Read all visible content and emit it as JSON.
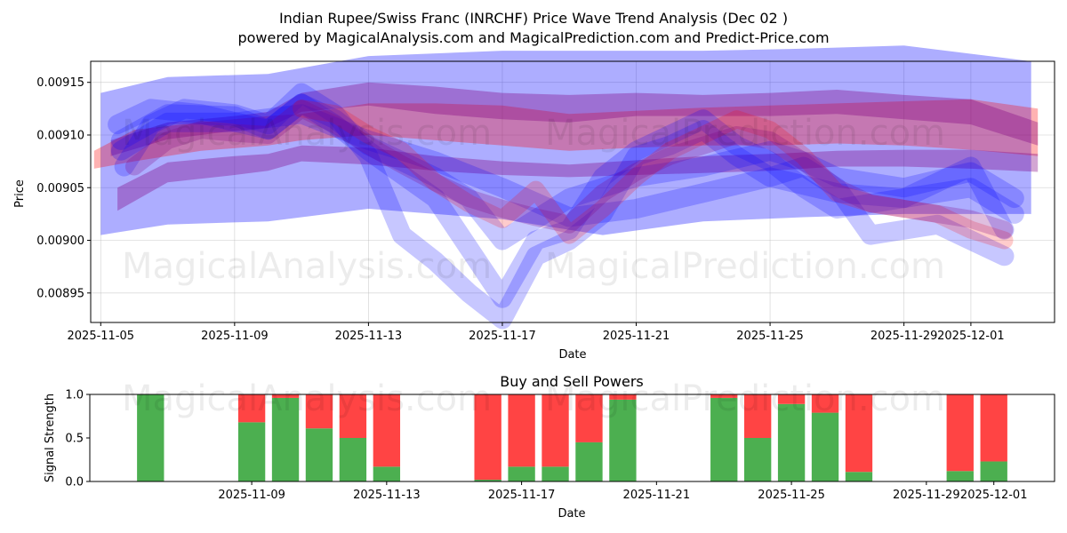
{
  "title_line1": "Indian Rupee/Swiss Franc (INRCHF) Price Wave Trend Analysis (Dec 02 )",
  "title_line2": "powered by MagicalAnalysis.com and MagicalPrediction.com and Predict-Price.com",
  "watermarks": [
    "MagicalAnalysis.com",
    "MagicalPrediction.com"
  ],
  "colors": {
    "blue": "#0000ff",
    "red": "#ff0000",
    "purple": "#800080",
    "buy": "#4caf50",
    "sell": "#ff4444"
  },
  "chart_data": [
    {
      "type": "line",
      "title": "",
      "xlabel": "Date",
      "ylabel": "Price",
      "x_ticks": [
        "2025-11-05",
        "2025-11-09",
        "2025-11-13",
        "2025-11-17",
        "2025-11-21",
        "2025-11-25",
        "2025-11-29",
        "2025-12-01"
      ],
      "x_tick_days": [
        0,
        4,
        8,
        12,
        16,
        20,
        24,
        26
      ],
      "y_ticks": [
        "0.00895",
        "0.00900",
        "0.00905",
        "0.00910",
        "0.00915"
      ],
      "y_tick_values": [
        0.00895,
        0.009,
        0.00905,
        0.0091,
        0.00915
      ],
      "xlim_days": [
        -0.3,
        28.5
      ],
      "ylim": [
        0.008922,
        0.00917
      ],
      "bands": [
        {
          "name": "blue-envelope",
          "color": "blue",
          "opacity": 0.32,
          "x": [
            0,
            2,
            5,
            8,
            12,
            15,
            18,
            21,
            24,
            27.8
          ],
          "upper": [
            0.00914,
            0.009155,
            0.009158,
            0.009175,
            0.00918,
            0.00918,
            0.00918,
            0.009182,
            0.009185,
            0.00917
          ],
          "lower": [
            0.009005,
            0.009015,
            0.009018,
            0.00903,
            0.00902,
            0.009005,
            0.009018,
            0.009022,
            0.009025,
            0.009025
          ]
        },
        {
          "name": "red-wave-upper",
          "color": "red",
          "opacity": 0.3,
          "x": [
            -0.2,
            1,
            3,
            5,
            6,
            8,
            10,
            12,
            14,
            16,
            18,
            20,
            22,
            24,
            26,
            28
          ],
          "upper": [
            0.009085,
            0.009105,
            0.009112,
            0.009118,
            0.00912,
            0.00913,
            0.00913,
            0.009128,
            0.00912,
            0.009123,
            0.009126,
            0.009128,
            0.00913,
            0.009132,
            0.009134,
            0.009125
          ],
          "lower": [
            0.009068,
            0.009075,
            0.009085,
            0.00909,
            0.009095,
            0.0091,
            0.009095,
            0.00909,
            0.009085,
            0.009088,
            0.00909,
            0.00909,
            0.009092,
            0.00909,
            0.009086,
            0.00908
          ]
        },
        {
          "name": "purple-wave-upper",
          "color": "purple",
          "opacity": 0.35,
          "x": [
            0.3,
            2,
            4,
            5,
            6,
            8,
            10,
            12,
            14,
            16,
            18,
            20,
            22,
            24,
            26,
            28
          ],
          "upper": [
            0.009095,
            0.009112,
            0.009118,
            0.009122,
            0.00914,
            0.00915,
            0.009146,
            0.00914,
            0.009138,
            0.00914,
            0.009138,
            0.00914,
            0.009143,
            0.009138,
            0.009134,
            0.009112
          ],
          "lower": [
            0.00908,
            0.009096,
            0.009104,
            0.009107,
            0.009122,
            0.009128,
            0.00912,
            0.009115,
            0.009112,
            0.009118,
            0.009118,
            0.009118,
            0.00912,
            0.009115,
            0.00911,
            0.00909
          ]
        },
        {
          "name": "purple-wave-lower",
          "color": "purple",
          "opacity": 0.35,
          "x": [
            0.5,
            2,
            4,
            5,
            6,
            8,
            10,
            12,
            14,
            16,
            18,
            20,
            22,
            24,
            26,
            28
          ],
          "upper": [
            0.00905,
            0.009074,
            0.00908,
            0.009082,
            0.00909,
            0.009088,
            0.00908,
            0.009075,
            0.009072,
            0.009076,
            0.00908,
            0.009082,
            0.009085,
            0.009086,
            0.009086,
            0.009082
          ],
          "lower": [
            0.009028,
            0.009055,
            0.009062,
            0.009066,
            0.009075,
            0.009072,
            0.009066,
            0.009062,
            0.00906,
            0.009062,
            0.009064,
            0.009066,
            0.00907,
            0.00907,
            0.009068,
            0.009065
          ]
        }
      ],
      "wave_lines": [
        {
          "color": "blue",
          "opacity": 0.22,
          "width": 22,
          "x": [
            0.5,
            1.5,
            3,
            5,
            6,
            7,
            8,
            10,
            12,
            13,
            14,
            15,
            16,
            17,
            18,
            19,
            20,
            21,
            22,
            23,
            24,
            25,
            26,
            27
          ],
          "y": [
            0.00911,
            0.009125,
            0.00912,
            0.009105,
            0.00913,
            0.00911,
            0.009085,
            0.00904,
            0.008945,
            0.009,
            0.00901,
            0.00906,
            0.009085,
            0.0091,
            0.009115,
            0.00909,
            0.009075,
            0.00905,
            0.00903,
            0.009035,
            0.00904,
            0.009055,
            0.00907,
            0.00901
          ]
        },
        {
          "color": "blue",
          "opacity": 0.22,
          "width": 22,
          "x": [
            0.7,
            1.5,
            2.5,
            4,
            5,
            6,
            7,
            8,
            9,
            10,
            11,
            12,
            13,
            14,
            15,
            16,
            17,
            18,
            19,
            20,
            21,
            22,
            23,
            24,
            25,
            26,
            27
          ],
          "y": [
            0.00907,
            0.00911,
            0.009125,
            0.00912,
            0.00911,
            0.00914,
            0.00912,
            0.00908,
            0.009005,
            0.00898,
            0.00895,
            0.008925,
            0.008985,
            0.009,
            0.009025,
            0.00908,
            0.00909,
            0.009105,
            0.00908,
            0.00906,
            0.00907,
            0.00905,
            0.009005,
            0.00901,
            0.009015,
            0.009,
            0.008985
          ]
        },
        {
          "color": "blue",
          "opacity": 0.22,
          "width": 22,
          "x": [
            0.6,
            2,
            4,
            5,
            6,
            7,
            8,
            10,
            11,
            12,
            13,
            14,
            15,
            16,
            18,
            20,
            21,
            22,
            24,
            26,
            27.3
          ],
          "y": [
            0.009095,
            0.00912,
            0.009118,
            0.009105,
            0.00913,
            0.009115,
            0.00909,
            0.00906,
            0.00904,
            0.009,
            0.00902,
            0.00904,
            0.00905,
            0.00906,
            0.00907,
            0.009085,
            0.009075,
            0.00906,
            0.00905,
            0.009065,
            0.00904
          ]
        },
        {
          "color": "blue",
          "opacity": 0.22,
          "width": 22,
          "x": [
            0.6,
            2,
            4,
            6,
            8,
            10,
            12,
            14,
            16,
            18,
            20,
            22,
            24,
            26,
            27.3
          ],
          "y": [
            0.009085,
            0.009112,
            0.009112,
            0.00912,
            0.009095,
            0.009075,
            0.00905,
            0.009022,
            0.00903,
            0.009045,
            0.00906,
            0.009045,
            0.00904,
            0.00905,
            0.009025
          ]
        },
        {
          "color": "red",
          "opacity": 0.2,
          "width": 20,
          "x": [
            6,
            7,
            8,
            9,
            10,
            11,
            12,
            13,
            14,
            15,
            16,
            17,
            18,
            19,
            20,
            21,
            22,
            23,
            24,
            25,
            26,
            27
          ],
          "y": [
            0.009125,
            0.00912,
            0.0091,
            0.009085,
            0.009055,
            0.009035,
            0.00902,
            0.009048,
            0.009005,
            0.00903,
            0.00906,
            0.009085,
            0.0091,
            0.009115,
            0.009105,
            0.00908,
            0.009045,
            0.009035,
            0.00903,
            0.009025,
            0.00901,
            0.009
          ]
        },
        {
          "color": "purple",
          "opacity": 0.25,
          "width": 20,
          "x": [
            1,
            2,
            3,
            4,
            5,
            6,
            7,
            8,
            9,
            10,
            11,
            12,
            13,
            14,
            15,
            16,
            17,
            18,
            19,
            20,
            21,
            22,
            23,
            24,
            25,
            26,
            27
          ],
          "y": [
            0.00907,
            0.009095,
            0.009105,
            0.009102,
            0.0091,
            0.009125,
            0.00911,
            0.00909,
            0.009072,
            0.009055,
            0.00904,
            0.00903,
            0.009022,
            0.009015,
            0.009045,
            0.009065,
            0.00908,
            0.00909,
            0.0091,
            0.009095,
            0.009075,
            0.00905,
            0.009035,
            0.00903,
            0.009025,
            0.00902,
            0.00901
          ]
        }
      ]
    },
    {
      "type": "bar",
      "title": "Buy and Sell Powers",
      "xlabel": "Date",
      "ylabel": "Signal Strength",
      "x_ticks": [
        "2025-11-09",
        "2025-11-13",
        "2025-11-17",
        "2025-11-21",
        "2025-11-25",
        "2025-11-29",
        "2025-12-01"
      ],
      "x_tick_days": [
        4,
        8,
        12,
        16,
        20,
        24,
        26
      ],
      "y_ticks": [
        "0.0",
        "0.5",
        "1.0"
      ],
      "y_tick_values": [
        0,
        0.5,
        1.0
      ],
      "xlim_days": [
        -0.8,
        27.8
      ],
      "ylim": [
        0,
        1
      ],
      "series": [
        {
          "name": "Buy",
          "color": "buy"
        },
        {
          "name": "Sell",
          "color": "sell"
        }
      ],
      "bars": [
        {
          "day": 1,
          "buy": 1.0,
          "sell": 0.0
        },
        {
          "day": 4,
          "buy": 0.68,
          "sell": 0.32
        },
        {
          "day": 5,
          "buy": 0.96,
          "sell": 0.04
        },
        {
          "day": 6,
          "buy": 0.61,
          "sell": 0.39
        },
        {
          "day": 7,
          "buy": 0.5,
          "sell": 0.5
        },
        {
          "day": 8,
          "buy": 0.17,
          "sell": 0.83
        },
        {
          "day": 11,
          "buy": 0.02,
          "sell": 0.98
        },
        {
          "day": 12,
          "buy": 0.17,
          "sell": 0.83
        },
        {
          "day": 13,
          "buy": 0.17,
          "sell": 0.83
        },
        {
          "day": 14,
          "buy": 0.45,
          "sell": 0.55
        },
        {
          "day": 15,
          "buy": 0.94,
          "sell": 0.06
        },
        {
          "day": 18,
          "buy": 0.96,
          "sell": 0.04
        },
        {
          "day": 19,
          "buy": 0.5,
          "sell": 0.5
        },
        {
          "day": 20,
          "buy": 0.89,
          "sell": 0.11
        },
        {
          "day": 21,
          "buy": 0.79,
          "sell": 0.21
        },
        {
          "day": 22,
          "buy": 0.11,
          "sell": 0.89
        },
        {
          "day": 25,
          "buy": 0.12,
          "sell": 0.88
        },
        {
          "day": 26,
          "buy": 0.23,
          "sell": 0.77
        }
      ]
    }
  ]
}
